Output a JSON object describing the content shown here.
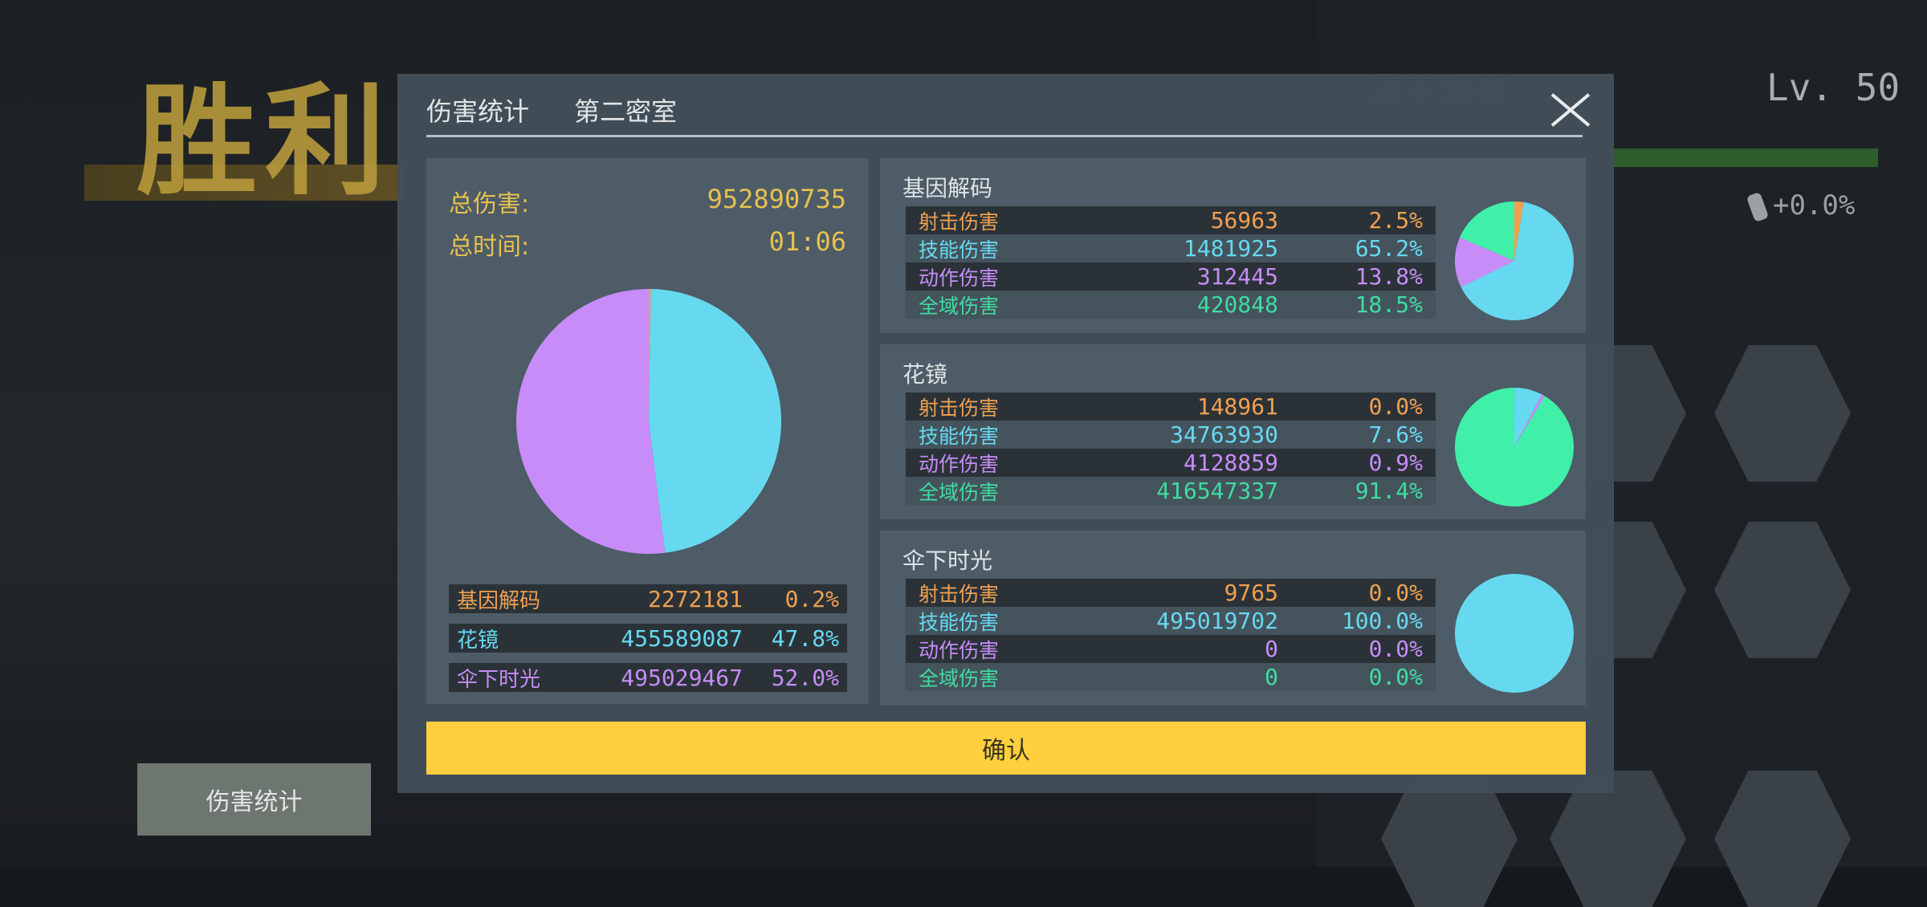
{
  "colors": {
    "shoot": "#f0a050",
    "skill": "#66d9f0",
    "action": "#c78cf7",
    "global": "#3fdca0",
    "global_pie": "#40f0a8",
    "gold": "#e8c050",
    "confirm": "#ffcf3f"
  },
  "background": {
    "victory_text": "胜利",
    "damage_stats_button": "伤害统计",
    "hero_name": "魔王栖夜",
    "level": "Lv. 50",
    "xp_progress": 1.0,
    "bonus": "+0.0%"
  },
  "modal": {
    "title": "伤害统计",
    "stage": "第二密室",
    "total_damage_label": "总伤害:",
    "total_damage": "952890735",
    "total_time_label": "总时间:",
    "total_time": "01:06",
    "members": [
      {
        "name": "基因解码",
        "damage": "2272181",
        "percent": "0.2%",
        "value": 2272181,
        "color": "#f0a050"
      },
      {
        "name": "花镜",
        "damage": "455589087",
        "percent": "47.8%",
        "value": 455589087,
        "color": "#66d9f0"
      },
      {
        "name": "伞下时光",
        "damage": "495029467",
        "percent": "52.0%",
        "value": 495029467,
        "color": "#c78cf7"
      }
    ],
    "cards": [
      {
        "title": "基因解码",
        "rows": [
          {
            "label": "射击伤害",
            "damage": "56963",
            "percent": "2.5%",
            "value": 56963
          },
          {
            "label": "技能伤害",
            "damage": "1481925",
            "percent": "65.2%",
            "value": 1481925
          },
          {
            "label": "动作伤害",
            "damage": "312445",
            "percent": "13.8%",
            "value": 312445
          },
          {
            "label": "全域伤害",
            "damage": "420848",
            "percent": "18.5%",
            "value": 420848
          }
        ]
      },
      {
        "title": "花镜",
        "rows": [
          {
            "label": "射击伤害",
            "damage": "148961",
            "percent": "0.0%",
            "value": 148961
          },
          {
            "label": "技能伤害",
            "damage": "34763930",
            "percent": "7.6%",
            "value": 34763930
          },
          {
            "label": "动作伤害",
            "damage": "4128859",
            "percent": "0.9%",
            "value": 4128859
          },
          {
            "label": "全域伤害",
            "damage": "416547337",
            "percent": "91.4%",
            "value": 416547337
          }
        ]
      },
      {
        "title": "伞下时光",
        "rows": [
          {
            "label": "射击伤害",
            "damage": "9765",
            "percent": "0.0%",
            "value": 9765
          },
          {
            "label": "技能伤害",
            "damage": "495019702",
            "percent": "100.0%",
            "value": 495019702
          },
          {
            "label": "动作伤害",
            "damage": "0",
            "percent": "0.0%",
            "value": 0
          },
          {
            "label": "全域伤害",
            "damage": "0",
            "percent": "0.0%",
            "value": 0
          }
        ]
      }
    ],
    "confirm_label": "确认"
  }
}
